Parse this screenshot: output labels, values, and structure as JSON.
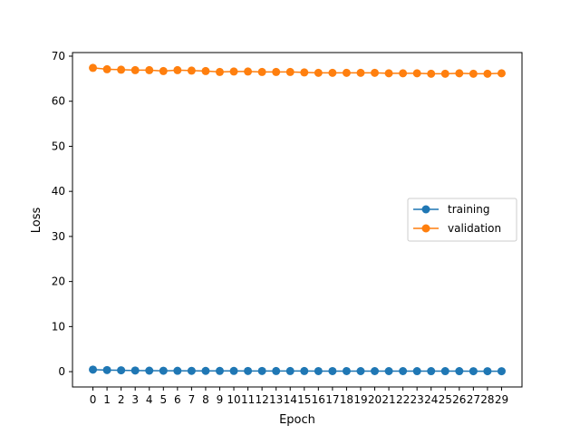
{
  "chart_data": {
    "type": "line",
    "xlabel": "Epoch",
    "ylabel": "Loss",
    "x": [
      0,
      1,
      2,
      3,
      4,
      5,
      6,
      7,
      8,
      9,
      10,
      11,
      12,
      13,
      14,
      15,
      16,
      17,
      18,
      19,
      20,
      21,
      22,
      23,
      24,
      25,
      26,
      27,
      28,
      29
    ],
    "xticks": [
      0,
      1,
      2,
      3,
      4,
      5,
      6,
      7,
      8,
      9,
      10,
      11,
      12,
      13,
      14,
      15,
      16,
      17,
      18,
      19,
      20,
      21,
      22,
      23,
      24,
      25,
      26,
      27,
      28,
      29
    ],
    "yticks": [
      0,
      10,
      20,
      30,
      40,
      50,
      60,
      70
    ],
    "xlim": [
      -1.45,
      30.45
    ],
    "ylim": [
      -3.4,
      70.8
    ],
    "grid": false,
    "legend_position": "center-right",
    "series": [
      {
        "name": "training",
        "color": "#1f77b4",
        "marker": "circle",
        "values": [
          0.45,
          0.35,
          0.3,
          0.25,
          0.22,
          0.2,
          0.19,
          0.18,
          0.17,
          0.16,
          0.16,
          0.15,
          0.15,
          0.14,
          0.14,
          0.14,
          0.13,
          0.13,
          0.13,
          0.12,
          0.12,
          0.12,
          0.12,
          0.11,
          0.11,
          0.11,
          0.11,
          0.1,
          0.1,
          0.1
        ]
      },
      {
        "name": "validation",
        "color": "#ff7f0e",
        "marker": "circle",
        "values": [
          67.4,
          67.1,
          67.0,
          66.9,
          66.9,
          66.7,
          66.9,
          66.8,
          66.7,
          66.5,
          66.6,
          66.6,
          66.5,
          66.5,
          66.5,
          66.4,
          66.3,
          66.3,
          66.3,
          66.3,
          66.3,
          66.2,
          66.2,
          66.2,
          66.1,
          66.1,
          66.2,
          66.1,
          66.1,
          66.2
        ]
      }
    ]
  }
}
